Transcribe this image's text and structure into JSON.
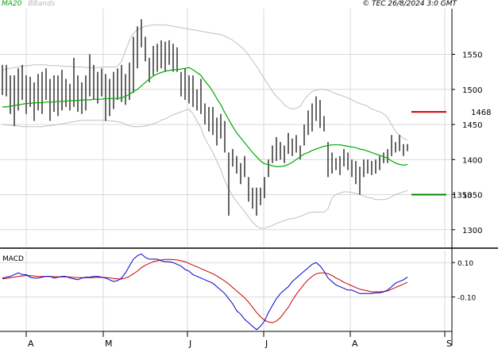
{
  "header": {
    "ma_label": "MA20",
    "bb_label": "BBands",
    "copyright": "© TEC 26/8/2024 3:0 GMT"
  },
  "colors": {
    "price_bars": "#000000",
    "ma20": "#00aa00",
    "bbands": "#c0c0c0",
    "grid": "#d9d9d9",
    "resistance": "#cc0000",
    "support": "#008800",
    "macd_line": "#0000cc",
    "signal_line": "#cc0000"
  },
  "chart_data": [
    {
      "type": "ohlc",
      "y_ticks": [
        "1300",
        "1350",
        "1400",
        "1450",
        "1500",
        "1550"
      ],
      "ylim": [
        1276,
        1615
      ],
      "x_ticks": [
        "A",
        "M",
        "J",
        "J",
        "A",
        "S"
      ],
      "grid": true,
      "levels": [
        {
          "value": 1468,
          "label": "1468",
          "color": "#cc0000"
        },
        {
          "value": 1350,
          "label": "1350",
          "color": "#008800"
        }
      ],
      "bars": [
        [
          1492,
          1535
        ],
        [
          1490,
          1535
        ],
        [
          1465,
          1520
        ],
        [
          1448,
          1520
        ],
        [
          1470,
          1530
        ],
        [
          1485,
          1535
        ],
        [
          1465,
          1520
        ],
        [
          1475,
          1518
        ],
        [
          1455,
          1510
        ],
        [
          1470,
          1522
        ],
        [
          1465,
          1525
        ],
        [
          1485,
          1530
        ],
        [
          1455,
          1515
        ],
        [
          1468,
          1520
        ],
        [
          1462,
          1520
        ],
        [
          1470,
          1528
        ],
        [
          1475,
          1515
        ],
        [
          1470,
          1508
        ],
        [
          1475,
          1545
        ],
        [
          1468,
          1520
        ],
        [
          1465,
          1510
        ],
        [
          1470,
          1520
        ],
        [
          1490,
          1550
        ],
        [
          1485,
          1535
        ],
        [
          1480,
          1525
        ],
        [
          1490,
          1530
        ],
        [
          1455,
          1522
        ],
        [
          1462,
          1515
        ],
        [
          1472,
          1525
        ],
        [
          1485,
          1530
        ],
        [
          1482,
          1535
        ],
        [
          1478,
          1522
        ],
        [
          1485,
          1538
        ],
        [
          1495,
          1575
        ],
        [
          1530,
          1590
        ],
        [
          1560,
          1600
        ],
        [
          1540,
          1575
        ],
        [
          1510,
          1545
        ],
        [
          1520,
          1562
        ],
        [
          1525,
          1565
        ],
        [
          1530,
          1570
        ],
        [
          1525,
          1568
        ],
        [
          1535,
          1570
        ],
        [
          1525,
          1565
        ],
        [
          1525,
          1560
        ],
        [
          1490,
          1525
        ],
        [
          1485,
          1530
        ],
        [
          1480,
          1520
        ],
        [
          1475,
          1520
        ],
        [
          1470,
          1500
        ],
        [
          1465,
          1515
        ],
        [
          1450,
          1480
        ],
        [
          1440,
          1475
        ],
        [
          1435,
          1475
        ],
        [
          1420,
          1460
        ],
        [
          1430,
          1465
        ],
        [
          1410,
          1455
        ],
        [
          1320,
          1410
        ],
        [
          1390,
          1415
        ],
        [
          1380,
          1405
        ],
        [
          1365,
          1395
        ],
        [
          1375,
          1405
        ],
        [
          1340,
          1375
        ],
        [
          1330,
          1360
        ],
        [
          1320,
          1360
        ],
        [
          1335,
          1360
        ],
        [
          1345,
          1375
        ],
        [
          1375,
          1400
        ],
        [
          1395,
          1420
        ],
        [
          1398,
          1432
        ],
        [
          1400,
          1425
        ],
        [
          1395,
          1420
        ],
        [
          1408,
          1438
        ],
        [
          1405,
          1430
        ],
        [
          1410,
          1435
        ],
        [
          1400,
          1420
        ],
        [
          1420,
          1450
        ],
        [
          1435,
          1470
        ],
        [
          1440,
          1480
        ],
        [
          1455,
          1490
        ],
        [
          1445,
          1485
        ],
        [
          1440,
          1462
        ],
        [
          1375,
          1425
        ],
        [
          1380,
          1410
        ],
        [
          1385,
          1402
        ],
        [
          1378,
          1405
        ],
        [
          1390,
          1415
        ],
        [
          1385,
          1410
        ],
        [
          1375,
          1400
        ],
        [
          1365,
          1398
        ],
        [
          1350,
          1390
        ],
        [
          1375,
          1400
        ],
        [
          1380,
          1400
        ],
        [
          1378,
          1398
        ],
        [
          1380,
          1400
        ],
        [
          1385,
          1405
        ],
        [
          1395,
          1410
        ],
        [
          1395,
          1415
        ],
        [
          1405,
          1435
        ],
        [
          1410,
          1425
        ],
        [
          1412,
          1435
        ],
        [
          1405,
          1422
        ],
        [
          1412,
          1422
        ]
      ],
      "ma20": [
        1475,
        1475,
        1476,
        1477,
        1478,
        1479,
        1480,
        1480,
        1481,
        1481,
        1481,
        1482,
        1482,
        1482,
        1483,
        1483,
        1483,
        1484,
        1484,
        1484,
        1485,
        1485,
        1485,
        1486,
        1486,
        1486,
        1487,
        1487,
        1487,
        1487,
        1488,
        1490,
        1493,
        1497,
        1500,
        1505,
        1510,
        1515,
        1519,
        1522,
        1524,
        1526,
        1527,
        1528,
        1528,
        1529,
        1530,
        1531,
        1528,
        1524,
        1520,
        1512,
        1505,
        1497,
        1487,
        1478,
        1467,
        1457,
        1447,
        1438,
        1431,
        1424,
        1417,
        1410,
        1404,
        1398,
        1394,
        1393,
        1391,
        1390,
        1390,
        1391,
        1393,
        1396,
        1400,
        1404,
        1408,
        1410,
        1413,
        1415,
        1417,
        1419,
        1420,
        1421,
        1421,
        1421,
        1420,
        1419,
        1418,
        1417,
        1415,
        1414,
        1412,
        1410,
        1408,
        1406,
        1404,
        1402,
        1398,
        1395,
        1393,
        1392,
        1393
      ],
      "bb_upper": [
        1528,
        1529,
        1530,
        1531,
        1532,
        1533,
        1534,
        1534,
        1535,
        1535,
        1535,
        1535,
        1534,
        1534,
        1534,
        1533,
        1533,
        1533,
        1532,
        1532,
        1532,
        1531,
        1531,
        1531,
        1531,
        1532,
        1532,
        1532,
        1532,
        1533,
        1540,
        1555,
        1570,
        1580,
        1585,
        1588,
        1590,
        1591,
        1592,
        1592,
        1592,
        1592,
        1591,
        1590,
        1589,
        1588,
        1587,
        1586,
        1585,
        1584,
        1583,
        1582,
        1581,
        1580,
        1579,
        1578,
        1576,
        1573,
        1570,
        1566,
        1561,
        1556,
        1549,
        1541,
        1533,
        1524,
        1515,
        1506,
        1497,
        1490,
        1485,
        1478,
        1474,
        1472,
        1473,
        1476,
        1485,
        1492,
        1497,
        1499,
        1500,
        1500,
        1499,
        1496,
        1494,
        1492,
        1490,
        1488,
        1485,
        1482,
        1480,
        1478,
        1476,
        1472,
        1470,
        1468,
        1465,
        1460,
        1450,
        1440,
        1435,
        1430,
        1428
      ],
      "bb_lower": [
        1450,
        1449,
        1449,
        1448,
        1448,
        1447,
        1447,
        1447,
        1447,
        1447,
        1447,
        1448,
        1448,
        1449,
        1450,
        1451,
        1452,
        1453,
        1454,
        1455,
        1456,
        1456,
        1456,
        1456,
        1456,
        1456,
        1456,
        1455,
        1455,
        1454,
        1453,
        1450,
        1448,
        1447,
        1447,
        1447,
        1448,
        1449,
        1451,
        1453,
        1456,
        1458,
        1461,
        1464,
        1466,
        1468,
        1470,
        1472,
        1465,
        1455,
        1445,
        1430,
        1420,
        1410,
        1398,
        1385,
        1370,
        1358,
        1348,
        1340,
        1333,
        1326,
        1318,
        1311,
        1305,
        1302,
        1302,
        1304,
        1306,
        1309,
        1311,
        1313,
        1315,
        1316,
        1317,
        1319,
        1321,
        1324,
        1325,
        1325,
        1325,
        1325,
        1330,
        1345,
        1350,
        1352,
        1354,
        1354,
        1353,
        1352,
        1350,
        1348,
        1346,
        1345,
        1343,
        1343,
        1343,
        1344,
        1347,
        1350,
        1352,
        1354,
        1356
      ]
    },
    {
      "type": "line",
      "title": "MACD",
      "y_ticks": [
        "0.10",
        "-0.10"
      ],
      "ylim": [
        -0.3,
        0.17
      ],
      "grid": true,
      "series": [
        {
          "values": [
            0.01,
            0.015,
            0.02,
            0.03,
            0.04,
            0.03,
            0.03,
            0.015,
            0.01,
            0.01,
            0.015,
            0.02,
            0.02,
            0.01,
            0.015,
            0.02,
            0.02,
            0.01,
            0.005,
            0.0,
            0.01,
            0.015,
            0.015,
            0.02,
            0.02,
            0.015,
            0.01,
            0.0,
            -0.01,
            -0.005,
            0.01,
            0.04,
            0.08,
            0.12,
            0.14,
            0.15,
            0.13,
            0.12,
            0.12,
            0.12,
            0.11,
            0.105,
            0.105,
            0.1,
            0.09,
            0.08,
            0.06,
            0.05,
            0.03,
            0.02,
            0.01,
            0.0,
            -0.01,
            -0.02,
            -0.04,
            -0.06,
            -0.08,
            -0.11,
            -0.14,
            -0.18,
            -0.2,
            -0.23,
            -0.25,
            -0.27,
            -0.29,
            -0.27,
            -0.24,
            -0.19,
            -0.15,
            -0.11,
            -0.08,
            -0.06,
            -0.04,
            -0.01,
            0.01,
            0.03,
            0.05,
            0.07,
            0.09,
            0.1,
            0.08,
            0.05,
            0.01,
            -0.01,
            -0.03,
            -0.04,
            -0.05,
            -0.06,
            -0.06,
            -0.07,
            -0.08,
            -0.08,
            -0.08,
            -0.08,
            -0.075,
            -0.075,
            -0.07,
            -0.06,
            -0.04,
            -0.02,
            -0.01,
            0.0,
            0.015
          ]
        },
        {
          "values": [
            0.005,
            0.008,
            0.012,
            0.015,
            0.02,
            0.022,
            0.025,
            0.024,
            0.022,
            0.02,
            0.019,
            0.019,
            0.019,
            0.018,
            0.017,
            0.017,
            0.017,
            0.016,
            0.014,
            0.012,
            0.012,
            0.012,
            0.012,
            0.013,
            0.014,
            0.014,
            0.013,
            0.011,
            0.008,
            0.005,
            0.004,
            0.01,
            0.02,
            0.035,
            0.05,
            0.07,
            0.085,
            0.095,
            0.105,
            0.11,
            0.115,
            0.118,
            0.118,
            0.117,
            0.115,
            0.11,
            0.105,
            0.095,
            0.085,
            0.075,
            0.065,
            0.055,
            0.045,
            0.035,
            0.022,
            0.008,
            -0.008,
            -0.025,
            -0.045,
            -0.065,
            -0.085,
            -0.105,
            -0.13,
            -0.16,
            -0.19,
            -0.215,
            -0.235,
            -0.245,
            -0.25,
            -0.24,
            -0.22,
            -0.19,
            -0.16,
            -0.12,
            -0.085,
            -0.055,
            -0.025,
            0.0,
            0.02,
            0.035,
            0.04,
            0.04,
            0.035,
            0.025,
            0.01,
            0.0,
            -0.015,
            -0.025,
            -0.035,
            -0.045,
            -0.055,
            -0.06,
            -0.065,
            -0.07,
            -0.07,
            -0.07,
            -0.068,
            -0.065,
            -0.055,
            -0.045,
            -0.035,
            -0.025,
            -0.015
          ]
        }
      ]
    }
  ]
}
